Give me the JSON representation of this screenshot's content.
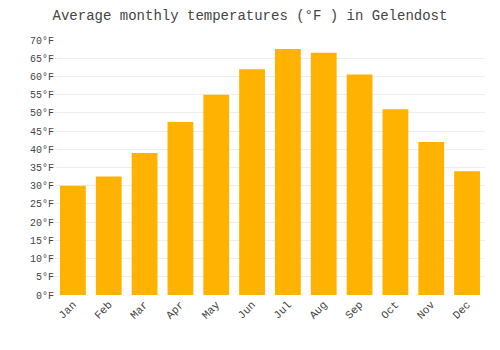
{
  "chart_data": {
    "type": "bar",
    "title": "Average monthly temperatures (°F ) in Gelendost",
    "categories": [
      "Jan",
      "Feb",
      "Mar",
      "Apr",
      "May",
      "Jun",
      "Jul",
      "Aug",
      "Sep",
      "Oct",
      "Nov",
      "Dec"
    ],
    "values": [
      30.0,
      32.5,
      39.0,
      47.5,
      55.0,
      62.0,
      67.5,
      66.5,
      60.5,
      51.0,
      42.0,
      34.0
    ],
    "color": "#FFB300",
    "ylim": [
      0,
      70
    ],
    "yticks": [
      {
        "value": 0,
        "label": "0°F"
      },
      {
        "value": 5,
        "label": "5°F"
      },
      {
        "value": 10,
        "label": "10°F"
      },
      {
        "value": 15,
        "label": "15°F"
      },
      {
        "value": 20,
        "label": "20°F"
      },
      {
        "value": 25,
        "label": "25°F"
      },
      {
        "value": 30,
        "label": "30°F"
      },
      {
        "value": 35,
        "label": "35°F"
      },
      {
        "value": 40,
        "label": "40°F"
      },
      {
        "value": 45,
        "label": "45°F"
      },
      {
        "value": 50,
        "label": "50°F"
      },
      {
        "value": 55,
        "label": "55°F"
      },
      {
        "value": 60,
        "label": "60°F"
      },
      {
        "value": 65,
        "label": "65°F"
      },
      {
        "value": 70,
        "label": "70°F"
      }
    ],
    "grid": true
  }
}
